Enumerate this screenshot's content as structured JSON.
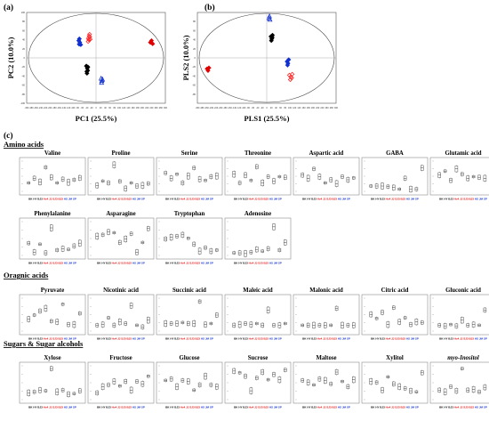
{
  "panels": {
    "a": "(a)",
    "b": "(b)",
    "c": "(c)"
  },
  "score_plots": [
    {
      "id": "pca",
      "xlabel": "PC1 (25.5%)",
      "ylabel": "PC2 (10.0%)",
      "x_ticks": [
        "-300",
        "-280",
        "-260",
        "-240",
        "-220",
        "-200",
        "-180",
        "-160",
        "-140",
        "-120",
        "-100",
        "-80",
        "-60",
        "-40",
        "-20",
        "0",
        "20",
        "40",
        "60",
        "80",
        "100",
        "120",
        "140",
        "160",
        "180",
        "200",
        "220",
        "240",
        "260",
        "280",
        "300"
      ],
      "y_ticks": [
        "100",
        "80",
        "60",
        "40",
        "20",
        "0",
        "-20",
        "-40",
        "-60",
        "-80",
        "-100"
      ],
      "xlim": [
        -300,
        300
      ],
      "ylim": [
        -100,
        100
      ],
      "groups": [
        {
          "color": "#ff2222",
          "marker": "diamond-open",
          "points": [
            [
              -33,
              43
            ],
            [
              -30,
              48
            ],
            [
              -27,
              46
            ],
            [
              -31,
              40
            ],
            [
              -28,
              52
            ],
            [
              -25,
              41
            ],
            [
              -34,
              36
            ]
          ]
        },
        {
          "color": "#e00000",
          "marker": "diamond",
          "points": [
            [
              235,
              34
            ],
            [
              240,
              38
            ],
            [
              245,
              31
            ]
          ]
        },
        {
          "color": "#1030d0",
          "marker": "diamond",
          "points": [
            [
              -75,
              38
            ],
            [
              -72,
              42
            ],
            [
              -70,
              34
            ],
            [
              -66,
              29
            ],
            [
              -73,
              30
            ]
          ]
        },
        {
          "color": "#000000",
          "marker": "diamond",
          "points": [
            [
              -42,
              -18
            ],
            [
              -38,
              -23
            ],
            [
              -40,
              -30
            ],
            [
              -36,
              -28
            ],
            [
              -39,
              -34
            ],
            [
              -35,
              -20
            ]
          ]
        },
        {
          "color": "#1030d0",
          "marker": "triangle-open",
          "points": [
            [
              22,
              -45
            ],
            [
              25,
              -50
            ],
            [
              28,
              -47
            ],
            [
              24,
              -54
            ]
          ]
        }
      ]
    },
    {
      "id": "pls",
      "xlabel": "PLS1 (25.5%)",
      "ylabel": "PLS2 (10.0%)",
      "x_ticks": [
        "-300",
        "-280",
        "-260",
        "-240",
        "-220",
        "-200",
        "-180",
        "-160",
        "-140",
        "-120",
        "-100",
        "-80",
        "-60",
        "-40",
        "-20",
        "0",
        "20",
        "40",
        "60",
        "80",
        "100",
        "120",
        "140",
        "160",
        "180",
        "200",
        "220",
        "240",
        "260",
        "280",
        "300"
      ],
      "y_ticks": [
        "80",
        "60",
        "40",
        "20",
        "0",
        "-20",
        "-40",
        "-60",
        "-80"
      ],
      "xlim": [
        -300,
        300
      ],
      "ylim": [
        -100,
        100
      ],
      "groups": [
        {
          "color": "#1030d0",
          "marker": "triangle-open",
          "points": [
            [
              10,
              88
            ],
            [
              12,
              92
            ],
            [
              14,
              85
            ]
          ]
        },
        {
          "color": "#000000",
          "marker": "diamond",
          "points": [
            [
              18,
              47
            ],
            [
              22,
              42
            ],
            [
              25,
              50
            ],
            [
              20,
              38
            ],
            [
              24,
              45
            ]
          ]
        },
        {
          "color": "#1030d0",
          "marker": "diamond",
          "points": [
            [
              88,
              -8
            ],
            [
              92,
              -12
            ],
            [
              95,
              -4
            ],
            [
              90,
              -16
            ]
          ]
        },
        {
          "color": "#ff2222",
          "marker": "diamond-open",
          "points": [
            [
              98,
              -38
            ],
            [
              104,
              -42
            ],
            [
              110,
              -36
            ],
            [
              102,
              -48
            ],
            [
              108,
              -44
            ]
          ]
        },
        {
          "color": "#e00000",
          "marker": "diamond",
          "points": [
            [
              -258,
              -24
            ],
            [
              -254,
              -28
            ],
            [
              -250,
              -22
            ]
          ]
        }
      ]
    }
  ],
  "sections": [
    {
      "title": "Amino acids"
    },
    {
      "title": "Oragnic acids"
    },
    {
      "title": "Sugars & Sugar alcohols"
    }
  ],
  "group_labels": [
    {
      "text": "BK",
      "color": "#000000"
    },
    {
      "text": "HY",
      "color": "#000000"
    },
    {
      "text": "BJ3",
      "color": "#000000"
    },
    {
      "text": "Ho4",
      "color": "#e00000"
    },
    {
      "text": "JJ",
      "color": "#e00000"
    },
    {
      "text": "SJ3",
      "color": "#e00000"
    },
    {
      "text": "BJ3",
      "color": "#e00000"
    },
    {
      "text": "HS",
      "color": "#1030d0"
    },
    {
      "text": "JM",
      "color": "#1030d0"
    },
    {
      "text": "SP",
      "color": "#1030d0"
    }
  ],
  "chart_data": [
    {
      "type": "box",
      "title": "Valine",
      "values": [
        0.3,
        0.45,
        0.33,
        0.8,
        0.48,
        0.3,
        0.42,
        0.32,
        0.4,
        0.46
      ]
    },
    {
      "type": "box",
      "title": "Proline",
      "values": [
        0.22,
        0.36,
        0.3,
        0.88,
        0.35,
        0.12,
        0.3,
        0.2,
        0.22,
        0.28
      ]
    },
    {
      "type": "box",
      "title": "Serine",
      "values": [
        0.62,
        0.45,
        0.58,
        0.3,
        0.52,
        0.78,
        0.42,
        0.38,
        0.5,
        0.52
      ]
    },
    {
      "type": "box",
      "title": "Threonine",
      "values": [
        0.58,
        0.3,
        0.55,
        0.38,
        0.82,
        0.3,
        0.5,
        0.36,
        0.5,
        0.48
      ]
    },
    {
      "type": "box",
      "title": "Aspartic acid",
      "values": [
        0.55,
        0.45,
        0.75,
        0.5,
        0.3,
        0.4,
        0.28,
        0.5,
        0.4,
        0.46
      ]
    },
    {
      "type": "box",
      "title": "GABA",
      "values": [
        0.2,
        0.2,
        0.2,
        0.18,
        0.15,
        0.1,
        0.45,
        0.1,
        0.1,
        0.78
      ]
    },
    {
      "type": "box",
      "title": "Glutamic acid",
      "values": [
        0.55,
        0.68,
        0.38,
        0.75,
        0.58,
        0.45,
        0.5,
        0.48,
        0.45,
        0.18
      ]
    },
    {
      "type": "box",
      "title": "Phenylalanine",
      "values": [
        0.38,
        0.12,
        0.35,
        0.1,
        0.82,
        0.18,
        0.22,
        0.2,
        0.3,
        0.38
      ]
    },
    {
      "type": "box",
      "title": "Asparagine",
      "values": [
        0.58,
        0.62,
        0.7,
        0.68,
        0.4,
        0.5,
        0.65,
        0.12,
        0.4,
        0.8
      ]
    },
    {
      "type": "box",
      "title": "Tryptophan",
      "values": [
        0.5,
        0.55,
        0.58,
        0.62,
        0.52,
        0.35,
        0.15,
        0.25,
        0.15,
        0.18
      ]
    },
    {
      "type": "box",
      "title": "Adenosine",
      "values": [
        0.1,
        0.1,
        0.08,
        0.12,
        0.2,
        0.15,
        0.22,
        0.85,
        0.18,
        0.4
      ]
    },
    {
      "type": "box",
      "title": "Pyruvate",
      "values": [
        0.38,
        0.5,
        0.62,
        0.7,
        0.32,
        0.3,
        0.82,
        0.22,
        0.22,
        0.55
      ]
    },
    {
      "type": "box",
      "title": "Nicotinic acid",
      "values": [
        0.2,
        0.22,
        0.42,
        0.2,
        0.3,
        0.25,
        0.78,
        0.2,
        0.15,
        0.35
      ]
    },
    {
      "type": "box",
      "title": "Succinic acid",
      "values": [
        0.25,
        0.25,
        0.25,
        0.28,
        0.25,
        0.25,
        0.9,
        0.22,
        0.25,
        0.5
      ]
    },
    {
      "type": "box",
      "title": "Maleic acid",
      "values": [
        0.2,
        0.22,
        0.25,
        0.22,
        0.25,
        0.2,
        0.65,
        0.2,
        0.2,
        0.25
      ]
    },
    {
      "type": "box",
      "title": "Malonic acid",
      "values": [
        0.2,
        0.2,
        0.2,
        0.2,
        0.2,
        0.2,
        0.7,
        0.2,
        0.2,
        0.2
      ]
    },
    {
      "type": "box",
      "title": "Citric acid",
      "values": [
        0.52,
        0.4,
        0.58,
        0.22,
        0.72,
        0.3,
        0.42,
        0.22,
        0.3,
        0.28
      ]
    },
    {
      "type": "box",
      "title": "Gluconic acid",
      "values": [
        0.2,
        0.18,
        0.22,
        0.18,
        0.35,
        0.2,
        0.22,
        0.2,
        0.65,
        0.25
      ]
    },
    {
      "type": "box",
      "title": "Xylose",
      "values": [
        0.22,
        0.25,
        0.3,
        0.28,
        0.92,
        0.25,
        0.3,
        0.18,
        0.2,
        0.28
      ]
    },
    {
      "type": "box",
      "title": "Fructose",
      "values": [
        0.22,
        0.4,
        0.45,
        0.55,
        0.42,
        0.55,
        0.3,
        0.55,
        0.48,
        0.7
      ]
    },
    {
      "type": "box",
      "title": "Glucose",
      "values": [
        0.58,
        0.62,
        0.4,
        0.58,
        0.55,
        0.3,
        0.45,
        0.7,
        0.45,
        0.4
      ]
    },
    {
      "type": "box",
      "title": "Sucrose",
      "values": [
        0.85,
        0.8,
        0.7,
        0.28,
        0.65,
        0.82,
        0.6,
        0.75,
        0.6,
        0.88
      ]
    },
    {
      "type": "box",
      "title": "Maltose",
      "values": [
        0.58,
        0.52,
        0.45,
        0.62,
        0.58,
        0.48,
        0.82,
        0.55,
        0.4,
        0.6
      ]
    },
    {
      "type": "box",
      "title": "Xylitol",
      "values": [
        0.55,
        0.52,
        0.3,
        0.68,
        0.48,
        0.4,
        0.35,
        0.28,
        0.25,
        0.8
      ]
    },
    {
      "type": "box",
      "title": "myo-Inositol",
      "values": [
        0.3,
        0.25,
        0.4,
        0.28,
        0.92,
        0.3,
        0.32,
        0.25,
        0.38,
        0.22
      ]
    }
  ]
}
